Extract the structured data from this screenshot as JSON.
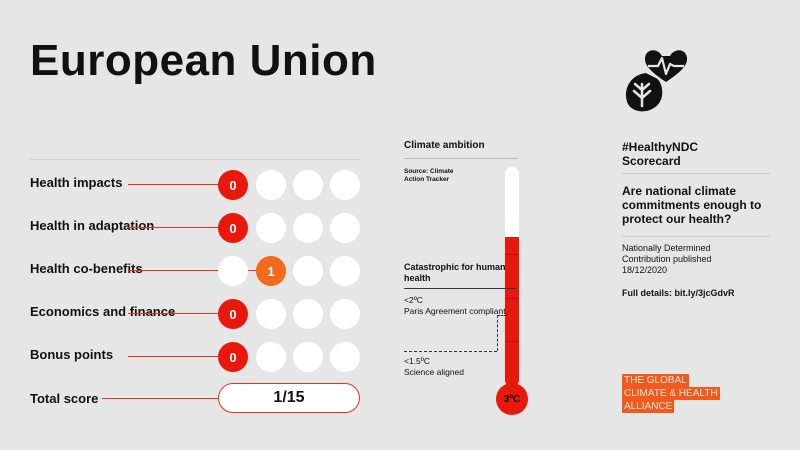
{
  "header": {
    "title": "European Union"
  },
  "scorecard": {
    "rows": [
      {
        "label": "Health impacts",
        "score": "0",
        "score_position": 1
      },
      {
        "label": "Health in adaptation",
        "score": "0",
        "score_position": 1
      },
      {
        "label": "Health co-benefits",
        "score": "1",
        "score_position": 2
      },
      {
        "label": "Economics and finance",
        "score": "0",
        "score_position": 1
      },
      {
        "label": "Bonus points",
        "score": "0",
        "score_position": 1
      }
    ],
    "total_label": "Total score",
    "total_value": "1/15"
  },
  "ambition": {
    "title": "Climate ambition",
    "source": "Source: Climate Action Tracker",
    "catastrophic": "Catastrophic for human health",
    "level_2": "<2ºC\nParis Agreement compliant",
    "level_15": "<1.5ºC\nScience aligned",
    "thermometer_value": "3ºC",
    "fill_fraction": 0.68
  },
  "sidebar": {
    "tag_line1": "#HealthyNDC",
    "tag_line2": "Scorecard",
    "question": "Are national climate commitments enough to protect our health?",
    "ndc_line1": "Nationally Determined",
    "ndc_line2": "Contribution published",
    "ndc_date": "18/12/2020",
    "details": "Full details: bit.ly/3jcGdvR",
    "alliance_line1": "THE GLOBAL",
    "alliance_line2": "CLIMATE & HEALTH",
    "alliance_line3": "ALLIANCE"
  },
  "colors": {
    "red": "#e8180c",
    "orange": "#f26a1b",
    "background": "#e6e6e6",
    "brand_orange": "#f25a1b"
  },
  "icons": {
    "logo": "heart-and-leaf-icon"
  }
}
